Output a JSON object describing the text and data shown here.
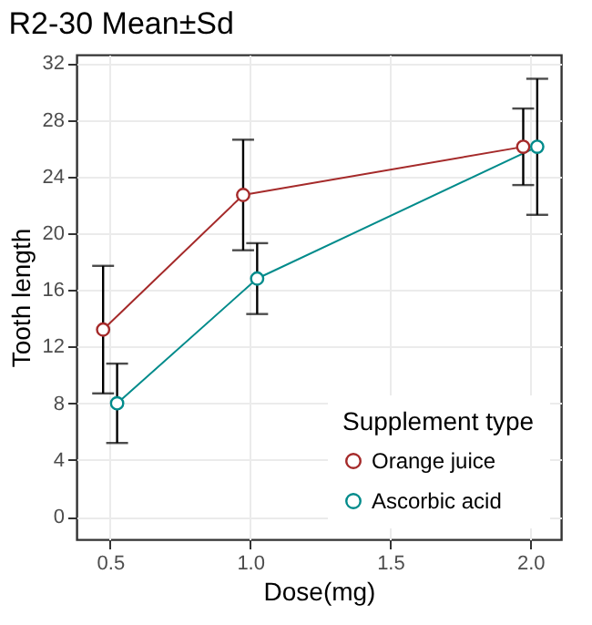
{
  "chart_data": {
    "type": "line",
    "title": "R2-30 Mean±Sd",
    "xlabel": "Dose(mg)",
    "ylabel": "Tooth length",
    "legend_title": "Supplement type",
    "series": [
      {
        "name": "Orange juice",
        "color": "#a52a2a",
        "x": [
          0.475,
          0.975,
          1.975
        ],
        "values": [
          13.2,
          22.7,
          26.1
        ],
        "errors": [
          4.5,
          3.9,
          2.7
        ]
      },
      {
        "name": "Ascorbic acid",
        "color": "#008b8b",
        "x": [
          0.525,
          1.025,
          2.025
        ],
        "values": [
          8.0,
          16.8,
          26.1
        ],
        "errors": [
          2.8,
          2.5,
          4.8
        ]
      }
    ],
    "xlim": [
      0.38,
      2.11
    ],
    "xticks": [
      0.5,
      {
        "value": 1,
        "label": "1.0"
      },
      1.5,
      {
        "value": 2,
        "label": "2.0"
      }
    ],
    "ylim": [
      -1.6,
      32.6
    ],
    "yticks": [
      0,
      4,
      8,
      12,
      16,
      20,
      24,
      28,
      32
    ],
    "grid": true,
    "legend": "bottom right",
    "marker": "circle",
    "line_style": "solid"
  }
}
